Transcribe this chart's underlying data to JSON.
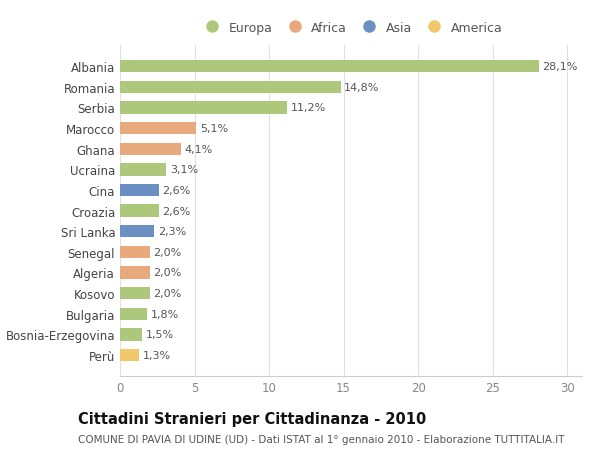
{
  "countries": [
    "Albania",
    "Romania",
    "Serbia",
    "Marocco",
    "Ghana",
    "Ucraina",
    "Cina",
    "Croazia",
    "Sri Lanka",
    "Senegal",
    "Algeria",
    "Kosovo",
    "Bulgaria",
    "Bosnia-Erzegovina",
    "Perù"
  ],
  "values": [
    28.1,
    14.8,
    11.2,
    5.1,
    4.1,
    3.1,
    2.6,
    2.6,
    2.3,
    2.0,
    2.0,
    2.0,
    1.8,
    1.5,
    1.3
  ],
  "continents": [
    "Europa",
    "Europa",
    "Europa",
    "Africa",
    "Africa",
    "Europa",
    "Asia",
    "Europa",
    "Asia",
    "Africa",
    "Africa",
    "Europa",
    "Europa",
    "Europa",
    "America"
  ],
  "colors": {
    "Europa": "#adc87a",
    "Africa": "#e8a97c",
    "Asia": "#6b8fc2",
    "America": "#f0ca6a"
  },
  "legend_order": [
    "Europa",
    "Africa",
    "Asia",
    "America"
  ],
  "xlim": [
    0,
    31
  ],
  "xticks": [
    0,
    5,
    10,
    15,
    20,
    25,
    30
  ],
  "title": "Cittadini Stranieri per Cittadinanza - 2010",
  "subtitle": "COMUNE DI PAVIA DI UDINE (UD) - Dati ISTAT al 1° gennaio 2010 - Elaborazione TUTTITALIA.IT",
  "background_color": "#ffffff",
  "bar_height": 0.6,
  "label_fontsize": 8,
  "tick_fontsize": 8.5,
  "title_fontsize": 10.5,
  "subtitle_fontsize": 7.5
}
